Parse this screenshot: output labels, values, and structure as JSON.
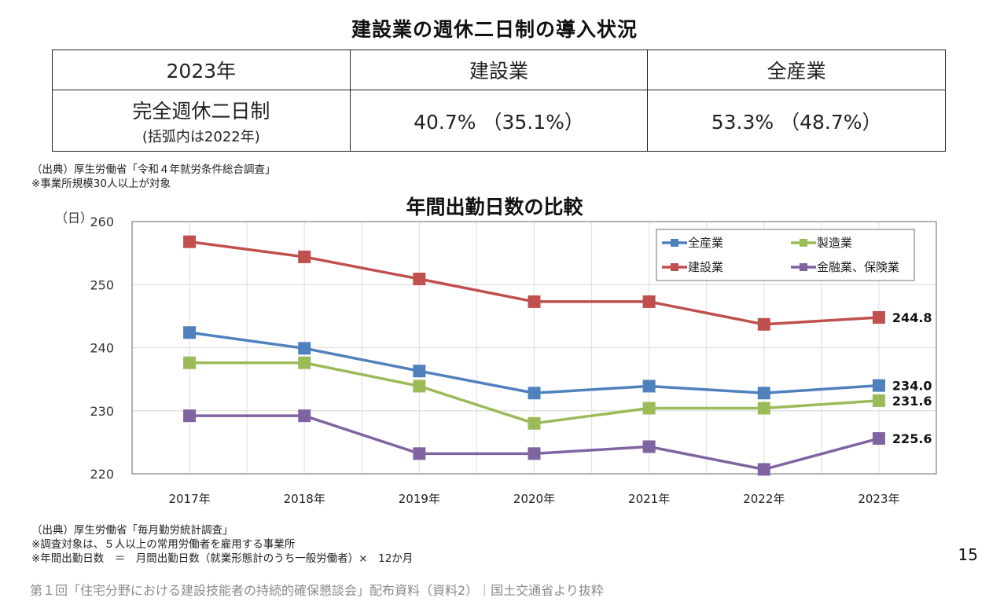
{
  "summary": {
    "title": "建設業の週休二日制の導入状況",
    "header": [
      "2023年",
      "建設業",
      "全産業"
    ],
    "row_label": "完全週休二日制",
    "row_sublabel": "(括弧内は2022年)",
    "values": [
      "40.7% （35.1%）",
      "53.3% （48.7%）"
    ],
    "source": "（出典）厚生労働省「令和４年就労条件総合調査」",
    "note": "※事業所規模30人以上が対象"
  },
  "chart_data": {
    "type": "line",
    "title": "年間出勤日数の比較",
    "ylabel": "（日）",
    "xlabel": "",
    "categories": [
      "2017年",
      "2018年",
      "2019年",
      "2020年",
      "2021年",
      "2022年",
      "2023年"
    ],
    "ylim": [
      220,
      260
    ],
    "yticks": [
      220,
      230,
      240,
      250,
      260
    ],
    "grid": true,
    "legend_position": "top-right",
    "series": [
      {
        "name": "全産業",
        "color": "#4F81BD",
        "values": [
          242.4,
          239.9,
          236.3,
          232.8,
          233.9,
          232.8,
          234.0
        ],
        "end_label": "234.0"
      },
      {
        "name": "製造業",
        "color": "#9BBB59",
        "values": [
          237.6,
          237.6,
          233.9,
          228.0,
          230.4,
          230.4,
          231.6
        ],
        "end_label": "231.6"
      },
      {
        "name": "建設業",
        "color": "#C0504D",
        "values": [
          256.8,
          254.4,
          250.9,
          247.3,
          247.3,
          243.7,
          244.8
        ],
        "end_label": "244.8"
      },
      {
        "name": "金融業、保険業",
        "color": "#8064A2",
        "values": [
          229.2,
          229.2,
          223.2,
          223.2,
          224.3,
          220.7,
          225.6
        ],
        "end_label": "225.6"
      }
    ]
  },
  "chart_notes": {
    "source": "（出典）厚生労働省「毎月勤労統計調査」",
    "note1": "※調査対象は、５人以上の常用労働者を雇用する事業所",
    "note2": "※年間出勤日数　＝　月間出勤日数（就業形態計のうち一般労働者）×　12か月"
  },
  "page_number": "15",
  "credit": "第１回「住宅分野における建設技能者の持続的確保懇談会」配布資料（資料2）｜国土交通省より抜粋"
}
